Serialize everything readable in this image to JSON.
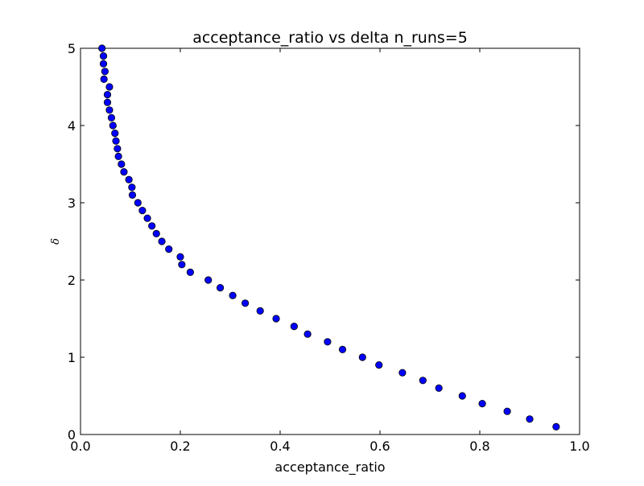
{
  "chart_data": {
    "type": "scatter",
    "title": "acceptance_ratio vs delta n_runs=5",
    "xlabel": "acceptance_ratio",
    "ylabel": "δ",
    "xlim": [
      0.0,
      1.0
    ],
    "ylim": [
      0,
      5
    ],
    "xticks": [
      "0.0",
      "0.2",
      "0.4",
      "0.6",
      "0.8",
      "1.0"
    ],
    "yticks": [
      "0",
      "1",
      "2",
      "3",
      "4",
      "5"
    ],
    "grid": false,
    "marker_color": "#0000ff",
    "marker_edge_color": "#000000",
    "series": [
      {
        "points": [
          [
            0.953,
            0.1
          ],
          [
            0.9,
            0.2
          ],
          [
            0.855,
            0.3
          ],
          [
            0.805,
            0.4
          ],
          [
            0.765,
            0.5
          ],
          [
            0.718,
            0.6
          ],
          [
            0.686,
            0.7
          ],
          [
            0.645,
            0.8
          ],
          [
            0.598,
            0.9
          ],
          [
            0.565,
            1.0
          ],
          [
            0.525,
            1.1
          ],
          [
            0.495,
            1.2
          ],
          [
            0.455,
            1.3
          ],
          [
            0.428,
            1.4
          ],
          [
            0.392,
            1.5
          ],
          [
            0.36,
            1.6
          ],
          [
            0.33,
            1.7
          ],
          [
            0.305,
            1.8
          ],
          [
            0.28,
            1.9
          ],
          [
            0.256,
            2.0
          ],
          [
            0.22,
            2.1
          ],
          [
            0.203,
            2.2
          ],
          [
            0.2,
            2.3
          ],
          [
            0.177,
            2.4
          ],
          [
            0.163,
            2.5
          ],
          [
            0.152,
            2.6
          ],
          [
            0.143,
            2.7
          ],
          [
            0.134,
            2.8
          ],
          [
            0.124,
            2.9
          ],
          [
            0.115,
            3.0
          ],
          [
            0.104,
            3.1
          ],
          [
            0.103,
            3.2
          ],
          [
            0.097,
            3.3
          ],
          [
            0.087,
            3.4
          ],
          [
            0.082,
            3.5
          ],
          [
            0.076,
            3.6
          ],
          [
            0.074,
            3.7
          ],
          [
            0.071,
            3.8
          ],
          [
            0.069,
            3.9
          ],
          [
            0.065,
            4.0
          ],
          [
            0.062,
            4.1
          ],
          [
            0.058,
            4.2
          ],
          [
            0.054,
            4.3
          ],
          [
            0.054,
            4.4
          ],
          [
            0.058,
            4.5
          ],
          [
            0.047,
            4.6
          ],
          [
            0.049,
            4.7
          ],
          [
            0.046,
            4.8
          ],
          [
            0.046,
            4.9
          ],
          [
            0.043,
            5.0
          ]
        ]
      }
    ]
  }
}
